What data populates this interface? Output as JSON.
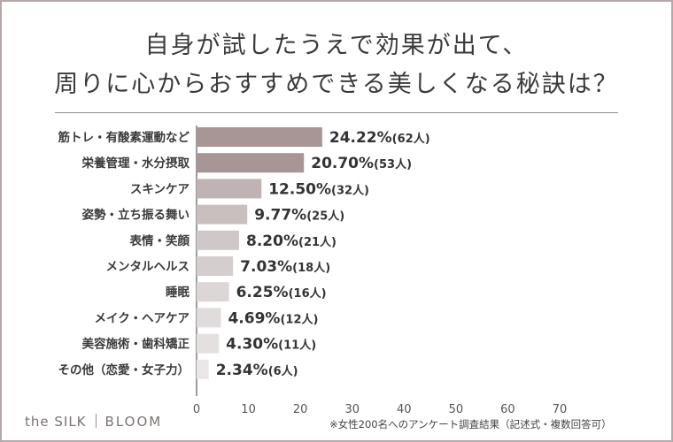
{
  "title": {
    "line1": "自身が試したうえで効果が出て、",
    "line2": "周りに心からおすすめできる美しくなる秘訣は？"
  },
  "chart_data": {
    "type": "bar",
    "orientation": "horizontal",
    "categories": [
      "筋トレ・有酸素運動など",
      "栄養管理・水分摂取",
      "スキンケア",
      "姿勢・立ち振る舞い",
      "表情・笑顔",
      "メンタルヘルス",
      "睡眠",
      "メイク・ヘアケア",
      "美容施術・歯科矯正",
      "その他（恋愛・女子力）"
    ],
    "values": [
      24.22,
      20.7,
      12.5,
      9.77,
      8.2,
      7.03,
      6.25,
      4.69,
      4.3,
      2.34
    ],
    "labels": [
      "24.22%",
      "20.70%",
      "12.50%",
      "9.77%",
      "8.20%",
      "7.03%",
      "6.25%",
      "4.69%",
      "4.30%",
      "2.34%"
    ],
    "counts": [
      "(62人)",
      "(53人)",
      "(32人)",
      "(25人)",
      "(21人)",
      "(18人)",
      "(16人)",
      "(12人)",
      "(11人)",
      "(6人)"
    ],
    "xlim": [
      0,
      70
    ],
    "xticks": [
      "0",
      "10",
      "20",
      "30",
      "40",
      "50",
      "60",
      "70"
    ],
    "colors": [
      "#a89596",
      "#a89596",
      "#bfb3b3",
      "#c9bfbf",
      "#d0c8c8",
      "#d6cece",
      "#dcd6d6",
      "#e1dcdc",
      "#e5e0e0",
      "#ebe7e7"
    ]
  },
  "brand": {
    "left": "the SILK",
    "right": "BLOOM"
  },
  "note": "※女性200名へのアンケート調査結果（記述式・複数回答可）"
}
